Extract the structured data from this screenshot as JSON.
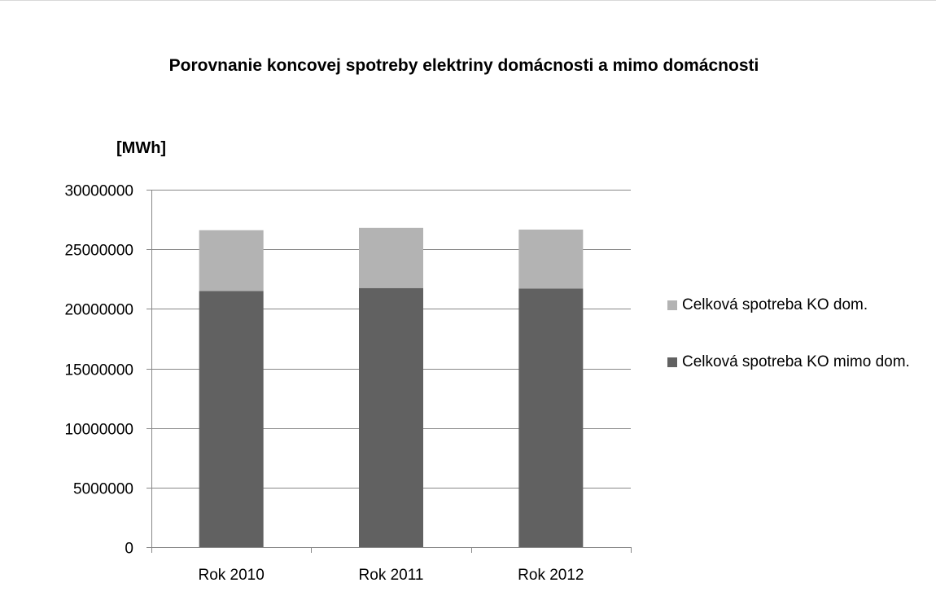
{
  "chart_data": {
    "type": "bar",
    "stacked": true,
    "title": "Porovnanie koncovej spotreby elektriny domácnosti a mimo domácnosti",
    "ylabel": "[MWh]",
    "xlabel": "",
    "categories": [
      "Rok 2010",
      "Rok 2011",
      "Rok 2012"
    ],
    "ylim": [
      0,
      30000000
    ],
    "yticks": [
      0,
      5000000,
      10000000,
      15000000,
      20000000,
      25000000,
      30000000
    ],
    "grid": true,
    "legend_position": "right",
    "series": [
      {
        "name": "Celková spotreba KO mimo dom.",
        "values": [
          21500000,
          21750000,
          21700000
        ],
        "color": "#616161"
      },
      {
        "name": "Celková spotreba KO dom.",
        "values": [
          5100000,
          5050000,
          4950000
        ],
        "color": "#b3b3b3"
      }
    ],
    "legend_order": [
      1,
      0
    ]
  }
}
